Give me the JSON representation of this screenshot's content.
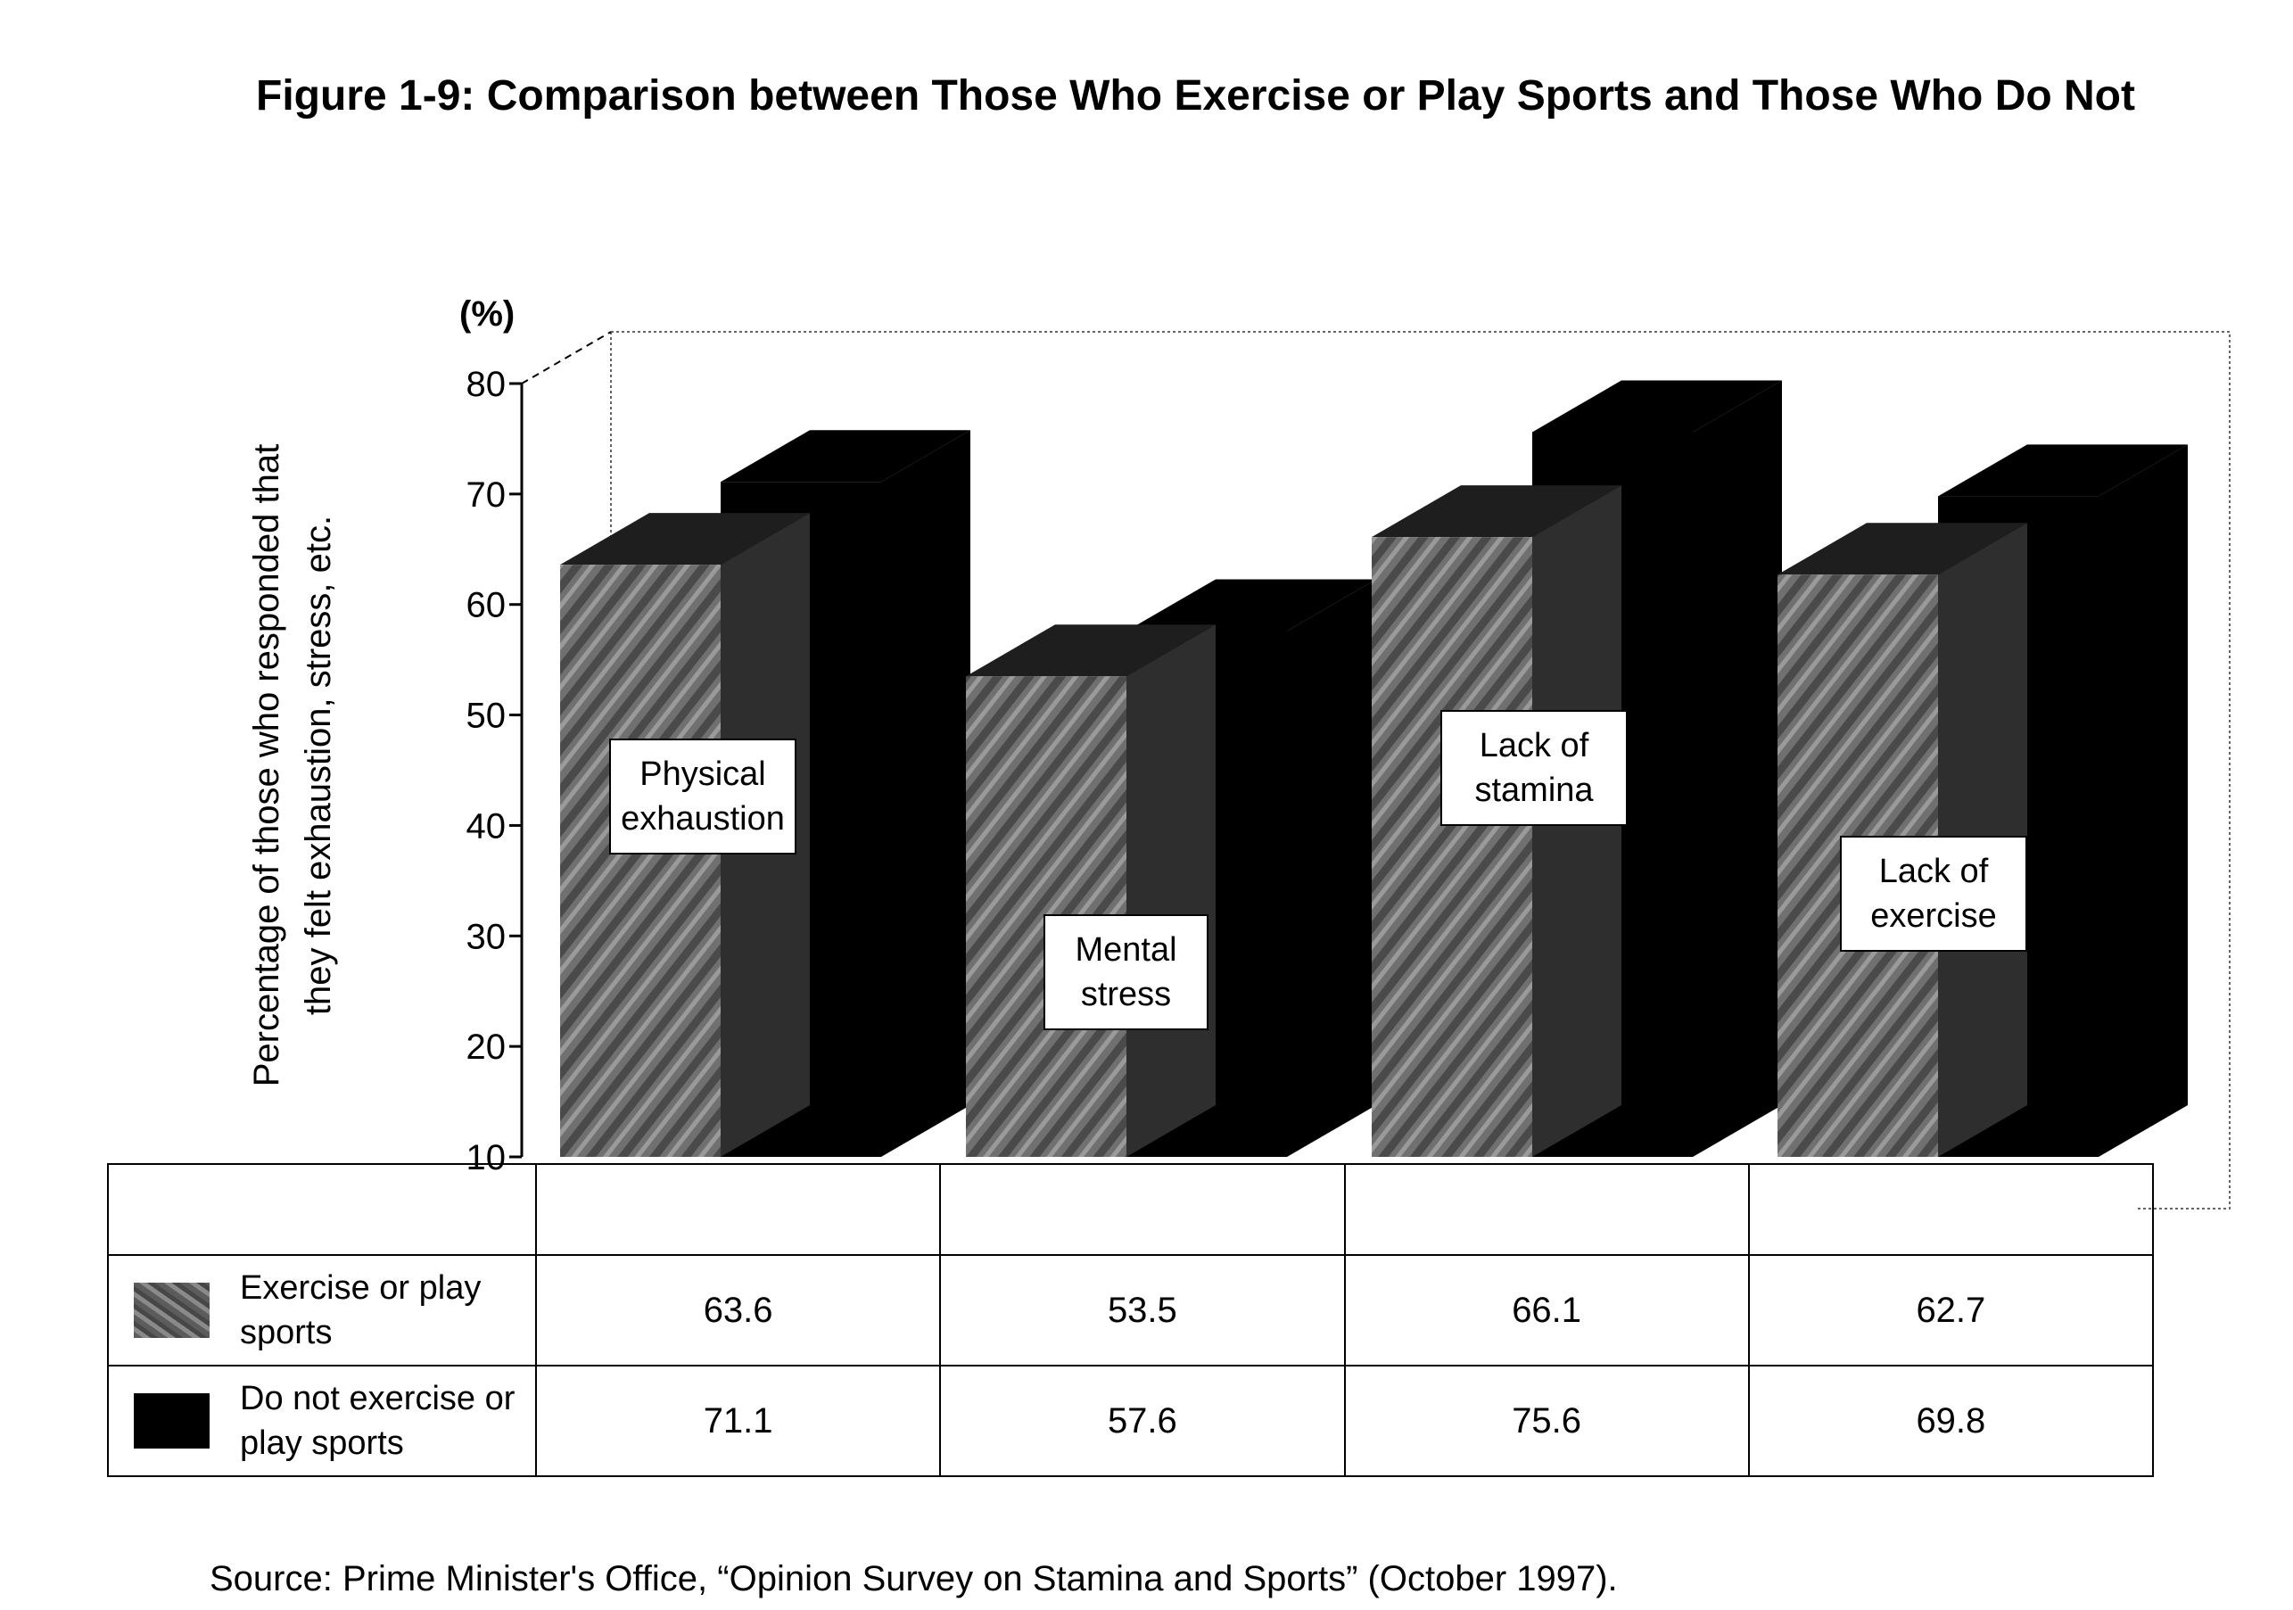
{
  "title": "Figure 1-9: Comparison between Those Who Exercise or Play Sports and Those Who Do Not",
  "source": "Source: Prime Minister's Office, “Opinion Survey on Stamina and Sports” (October 1997).",
  "chart_data": {
    "type": "bar",
    "title": "Figure 1-9: Comparison between Those Who Exercise or Play Sports and Those Who Do Not",
    "ylabel": "Percentage of those who responded that they felt exhaustion, stress, etc.",
    "ylabel_lines": [
      "Percentage of those who responded that",
      "they felt exhaustion, stress, etc."
    ],
    "unit": "(%)",
    "ylim": [
      10,
      80
    ],
    "yticks": [
      10,
      20,
      30,
      40,
      50,
      60,
      70,
      80
    ],
    "categories": [
      "Physical exhaustion",
      "Mental stress",
      "Lack of stamina",
      "Lack of exercise"
    ],
    "category_label_lines": [
      [
        "Physical",
        "exhaustion"
      ],
      [
        "Mental",
        "stress"
      ],
      [
        "Lack of",
        "stamina"
      ],
      [
        "Lack of",
        "exercise"
      ]
    ],
    "series": [
      {
        "name": "Exercise or play sports",
        "name_lines": [
          "Exercise or play",
          "sports"
        ],
        "values": [
          63.6,
          53.5,
          66.1,
          62.7
        ],
        "color": "#6e6e6e",
        "pattern": "textured-gray"
      },
      {
        "name": "Do not exercise or play sports",
        "name_lines": [
          "Do not exercise or",
          "play sports"
        ],
        "values": [
          71.1,
          57.6,
          75.6,
          69.8
        ],
        "color": "#000000"
      }
    ],
    "legend": "table-below",
    "grid": false,
    "style": "3d-bars"
  }
}
